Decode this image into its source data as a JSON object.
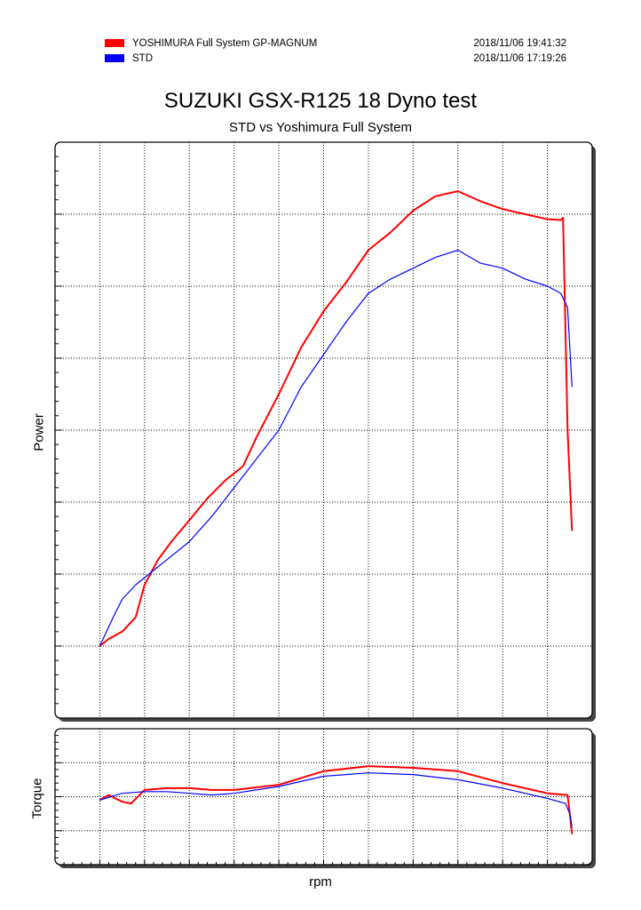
{
  "legend": [
    {
      "name": "YOSHIMURA Full System GP-MAGNUM",
      "timestamp": "2018/11/06 19:41:32",
      "color": "#ff0000"
    },
    {
      "name": "STD",
      "timestamp": "2018/11/06 17:19:26",
      "color": "#0000ff"
    }
  ],
  "chart_data": [
    {
      "type": "line",
      "title": "SUZUKI GSX-R125 18 Dyno test",
      "subtitle": "STD vs Yoshimura Full System",
      "xlabel": "rpm",
      "ylabel": "Power",
      "grid": true,
      "legend_position": "top",
      "xlim": [
        0,
        12
      ],
      "ylim": [
        0,
        8
      ],
      "series": [
        {
          "name": "YOSHIMURA Full System GP-MAGNUM",
          "color": "#ff0000",
          "x": [
            1.0,
            1.2,
            1.5,
            1.8,
            2.0,
            2.3,
            2.6,
            3.0,
            3.4,
            3.8,
            4.2,
            4.5,
            5.0,
            5.5,
            6.0,
            6.5,
            7.0,
            7.5,
            8.0,
            8.5,
            9.0,
            9.5,
            10.0,
            10.5,
            11.0,
            11.3,
            11.35,
            11.45,
            11.55
          ],
          "y": [
            1.0,
            1.1,
            1.2,
            1.4,
            1.85,
            2.2,
            2.45,
            2.75,
            3.05,
            3.3,
            3.5,
            3.9,
            4.5,
            5.15,
            5.65,
            6.05,
            6.5,
            6.75,
            7.05,
            7.25,
            7.32,
            7.18,
            7.07,
            7.0,
            6.93,
            6.92,
            6.95,
            4.0,
            2.6
          ]
        },
        {
          "name": "STD",
          "color": "#0000ff",
          "x": [
            1.0,
            1.3,
            1.5,
            1.8,
            2.0,
            2.5,
            3.0,
            3.5,
            4.0,
            4.5,
            5.0,
            5.5,
            6.0,
            6.5,
            7.0,
            7.5,
            8.0,
            8.5,
            9.0,
            9.5,
            10.0,
            10.5,
            11.0,
            11.3,
            11.45,
            11.55
          ],
          "y": [
            1.0,
            1.4,
            1.65,
            1.85,
            1.95,
            2.2,
            2.45,
            2.8,
            3.2,
            3.6,
            4.0,
            4.6,
            5.05,
            5.5,
            5.9,
            6.1,
            6.25,
            6.4,
            6.5,
            6.32,
            6.25,
            6.1,
            6.0,
            5.9,
            5.7,
            4.6
          ]
        }
      ]
    },
    {
      "type": "line",
      "title": "",
      "xlabel": "rpm",
      "ylabel": "Torque",
      "grid": true,
      "xlim": [
        0,
        12
      ],
      "ylim": [
        0,
        4
      ],
      "series": [
        {
          "name": "YOSHIMURA Full System GP-MAGNUM",
          "color": "#ff0000",
          "x": [
            1.0,
            1.2,
            1.5,
            1.7,
            2.0,
            2.5,
            3.0,
            3.5,
            4.0,
            5.0,
            6.0,
            7.0,
            8.0,
            9.0,
            10.0,
            11.0,
            11.45,
            11.5,
            11.55
          ],
          "y": [
            1.9,
            2.05,
            1.85,
            1.8,
            2.2,
            2.25,
            2.25,
            2.2,
            2.2,
            2.35,
            2.75,
            2.9,
            2.85,
            2.75,
            2.4,
            2.1,
            2.05,
            1.5,
            0.9
          ]
        },
        {
          "name": "STD",
          "color": "#0000ff",
          "x": [
            1.0,
            1.5,
            2.0,
            2.5,
            3.0,
            3.5,
            4.0,
            5.0,
            6.0,
            7.0,
            8.0,
            9.0,
            10.0,
            11.0,
            11.4,
            11.5,
            11.55
          ],
          "y": [
            1.9,
            2.1,
            2.15,
            2.15,
            2.1,
            2.05,
            2.1,
            2.3,
            2.6,
            2.7,
            2.65,
            2.5,
            2.25,
            1.95,
            1.8,
            1.5,
            1.1
          ]
        }
      ]
    }
  ]
}
